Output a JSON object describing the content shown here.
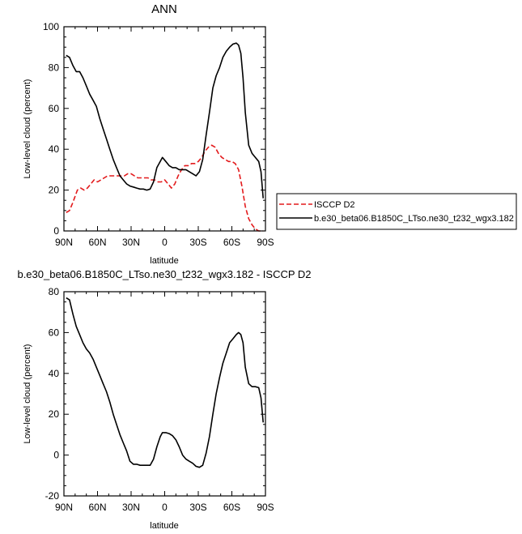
{
  "chart_data": [
    {
      "type": "line",
      "title": "ANN",
      "xlabel": "latitude",
      "ylabel": "Low-level cloud (percent)",
      "xlim": [
        90,
        -90
      ],
      "ylim": [
        0,
        100
      ],
      "xticks": [
        90,
        60,
        30,
        0,
        -30,
        -60,
        -90
      ],
      "xtick_labels": [
        "90N",
        "60N",
        "30N",
        "0",
        "30S",
        "60S",
        "90S"
      ],
      "yticks": [
        0,
        20,
        40,
        60,
        80,
        100
      ],
      "ytick_labels": [
        "0",
        "20",
        "40",
        "60",
        "80",
        "100"
      ],
      "legend_position": "right",
      "series": [
        {
          "name": "ISCCP D2",
          "color": "#e31a1c",
          "dash": "dashed",
          "points": [
            [
              88,
              9
            ],
            [
              85,
              10
            ],
            [
              82,
              14
            ],
            [
              78,
              20
            ],
            [
              75,
              21
            ],
            [
              72,
              20
            ],
            [
              69,
              21
            ],
            [
              66,
              23
            ],
            [
              63,
              25
            ],
            [
              60,
              24
            ],
            [
              57,
              25
            ],
            [
              54,
              26
            ],
            [
              51,
              27
            ],
            [
              48,
              27
            ],
            [
              45,
              27
            ],
            [
              42,
              27
            ],
            [
              39,
              27
            ],
            [
              36,
              27
            ],
            [
              33,
              28
            ],
            [
              30,
              28
            ],
            [
              27,
              27
            ],
            [
              24,
              26
            ],
            [
              21,
              26
            ],
            [
              18,
              26
            ],
            [
              15,
              26
            ],
            [
              12,
              25
            ],
            [
              9,
              25
            ],
            [
              6,
              24
            ],
            [
              3,
              24
            ],
            [
              0,
              25
            ],
            [
              -3,
              23
            ],
            [
              -6,
              21
            ],
            [
              -9,
              23
            ],
            [
              -12,
              27
            ],
            [
              -15,
              30
            ],
            [
              -18,
              32
            ],
            [
              -21,
              32
            ],
            [
              -24,
              33
            ],
            [
              -27,
              33
            ],
            [
              -30,
              34
            ],
            [
              -33,
              36
            ],
            [
              -36,
              39
            ],
            [
              -39,
              41
            ],
            [
              -42,
              42
            ],
            [
              -45,
              41
            ],
            [
              -48,
              38
            ],
            [
              -51,
              36
            ],
            [
              -54,
              35
            ],
            [
              -57,
              34
            ],
            [
              -60,
              34
            ],
            [
              -63,
              33
            ],
            [
              -66,
              30
            ],
            [
              -69,
              22
            ],
            [
              -72,
              12
            ],
            [
              -75,
              6
            ],
            [
              -78,
              3
            ],
            [
              -81,
              1
            ],
            [
              -84,
              0
            ],
            [
              -88,
              0
            ]
          ]
        },
        {
          "name": "b.e30_beta06.B1850C_LTso.ne30_t232_wgx3.182",
          "color": "#000000",
          "dash": "solid",
          "points": [
            [
              88,
              86
            ],
            [
              85,
              85
            ],
            [
              82,
              81
            ],
            [
              79,
              78
            ],
            [
              76,
              78
            ],
            [
              73,
              75
            ],
            [
              70,
              71
            ],
            [
              67,
              67
            ],
            [
              64,
              64
            ],
            [
              61,
              61
            ],
            [
              58,
              55
            ],
            [
              55,
              50
            ],
            [
              52,
              45
            ],
            [
              49,
              40
            ],
            [
              46,
              35
            ],
            [
              43,
              31
            ],
            [
              40,
              27
            ],
            [
              37,
              25
            ],
            [
              34,
              23
            ],
            [
              31,
              22
            ],
            [
              28,
              21.5
            ],
            [
              25,
              21
            ],
            [
              22,
              20.5
            ],
            [
              19,
              20.5
            ],
            [
              16,
              20
            ],
            [
              13,
              20.5
            ],
            [
              10,
              24
            ],
            [
              7,
              31
            ],
            [
              4,
              34
            ],
            [
              2,
              36
            ],
            [
              -1,
              34
            ],
            [
              -4,
              32
            ],
            [
              -7,
              31
            ],
            [
              -10,
              31
            ],
            [
              -13,
              30
            ],
            [
              -16,
              30
            ],
            [
              -19,
              30
            ],
            [
              -22,
              29
            ],
            [
              -25,
              28
            ],
            [
              -28,
              27
            ],
            [
              -31,
              29
            ],
            [
              -34,
              35
            ],
            [
              -37,
              47
            ],
            [
              -40,
              58
            ],
            [
              -43,
              70
            ],
            [
              -46,
              76
            ],
            [
              -49,
              80
            ],
            [
              -52,
              85
            ],
            [
              -55,
              88
            ],
            [
              -58,
              90
            ],
            [
              -61,
              91.5
            ],
            [
              -64,
              92
            ],
            [
              -66,
              91
            ],
            [
              -68,
              87
            ],
            [
              -70,
              75
            ],
            [
              -72,
              58
            ],
            [
              -75,
              42
            ],
            [
              -78,
              38
            ],
            [
              -81,
              36
            ],
            [
              -84,
              34
            ],
            [
              -86,
              29
            ],
            [
              -88,
              16
            ]
          ]
        }
      ]
    },
    {
      "type": "line",
      "title": "b.e30_beta06.B1850C_LTso.ne30_t232_wgx3.182 - ISCCP D2",
      "xlabel": "latitude",
      "ylabel": "Low-level cloud (percent)",
      "xlim": [
        90,
        -90
      ],
      "ylim": [
        -20,
        80
      ],
      "xticks": [
        90,
        60,
        30,
        0,
        -30,
        -60,
        -90
      ],
      "xtick_labels": [
        "90N",
        "60N",
        "30N",
        "0",
        "30S",
        "60S",
        "90S"
      ],
      "yticks": [
        -20,
        0,
        20,
        40,
        60,
        80
      ],
      "ytick_labels": [
        "-20",
        "0",
        "20",
        "40",
        "60",
        "80"
      ],
      "series": [
        {
          "color": "#000000",
          "dash": "solid",
          "points": [
            [
              88,
              77
            ],
            [
              85,
              76
            ],
            [
              82,
              69
            ],
            [
              79,
              63
            ],
            [
              76,
              59
            ],
            [
              73,
              55
            ],
            [
              70,
              52
            ],
            [
              67,
              50
            ],
            [
              64,
              47
            ],
            [
              61,
              43
            ],
            [
              58,
              39
            ],
            [
              55,
              35
            ],
            [
              52,
              31
            ],
            [
              49,
              26
            ],
            [
              46,
              20
            ],
            [
              43,
              15
            ],
            [
              40,
              10
            ],
            [
              37,
              6
            ],
            [
              34,
              2
            ],
            [
              31,
              -3
            ],
            [
              28,
              -4.5
            ],
            [
              25,
              -4.5
            ],
            [
              22,
              -5
            ],
            [
              19,
              -5
            ],
            [
              16,
              -5
            ],
            [
              13,
              -5
            ],
            [
              10,
              -2
            ],
            [
              7,
              4
            ],
            [
              4,
              9
            ],
            [
              2,
              11
            ],
            [
              -1,
              11
            ],
            [
              -4,
              10.5
            ],
            [
              -7,
              9.5
            ],
            [
              -10,
              7.5
            ],
            [
              -13,
              4
            ],
            [
              -16,
              0
            ],
            [
              -19,
              -2
            ],
            [
              -22,
              -3
            ],
            [
              -25,
              -4
            ],
            [
              -28,
              -5.5
            ],
            [
              -31,
              -6
            ],
            [
              -34,
              -5
            ],
            [
              -37,
              1
            ],
            [
              -40,
              9
            ],
            [
              -43,
              20
            ],
            [
              -46,
              30
            ],
            [
              -49,
              38
            ],
            [
              -52,
              45
            ],
            [
              -55,
              50
            ],
            [
              -58,
              55
            ],
            [
              -61,
              57
            ],
            [
              -64,
              59
            ],
            [
              -66,
              60
            ],
            [
              -68,
              59
            ],
            [
              -70,
              55
            ],
            [
              -72,
              43
            ],
            [
              -75,
              35
            ],
            [
              -78,
              33.5
            ],
            [
              -81,
              33.5
            ],
            [
              -84,
              33
            ],
            [
              -86,
              28
            ],
            [
              -88,
              16
            ]
          ]
        }
      ]
    }
  ]
}
